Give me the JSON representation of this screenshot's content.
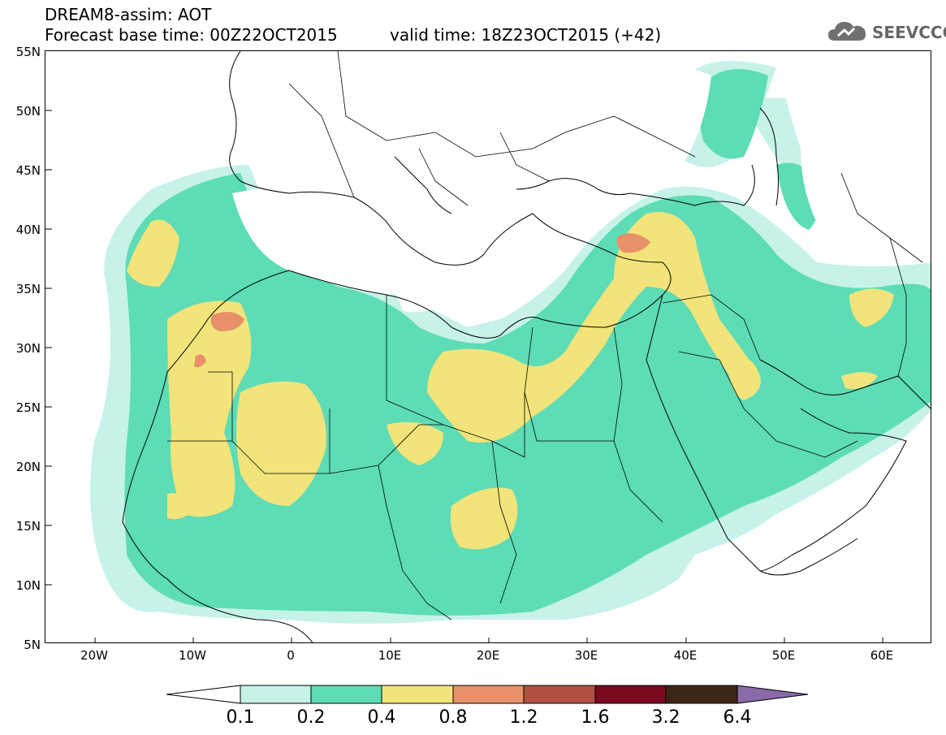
{
  "header": {
    "line1": "DREAM8-assim: AOT",
    "line2": "Forecast base time: 00Z22OCT2015",
    "valid": "valid time: 18Z23OCT2015 (+42)"
  },
  "logo": {
    "text": "SEEVCCC",
    "icon": "cloud-icon"
  },
  "map": {
    "region": "North Africa, Mediterranean and Middle East",
    "lon_range": [
      -25,
      65
    ],
    "lat_range": [
      5,
      55
    ],
    "lat_labels": [
      "55N",
      "50N",
      "45N",
      "40N",
      "35N",
      "30N",
      "25N",
      "20N",
      "15N",
      "10N",
      "5N"
    ],
    "lon_labels": [
      "20W",
      "10W",
      "0",
      "10E",
      "20E",
      "30E",
      "40E",
      "50E",
      "60E"
    ]
  },
  "colorbar": {
    "labels": [
      "0.1",
      "0.2",
      "0.4",
      "0.8",
      "1.2",
      "1.6",
      "3.2",
      "6.4"
    ],
    "colors": [
      "#c6f2ea",
      "#5ddcb6",
      "#f2e47a",
      "#e8906a",
      "#b05040",
      "#7a0a1e",
      "#3b2616",
      "#8a6aa8"
    ]
  }
}
